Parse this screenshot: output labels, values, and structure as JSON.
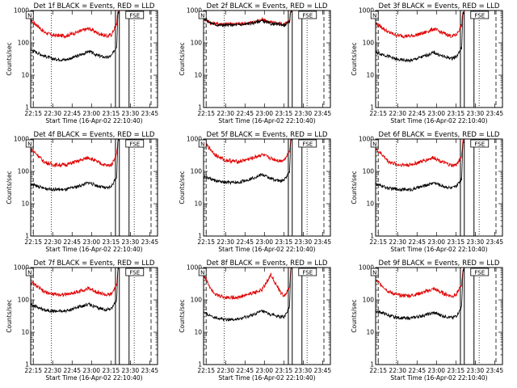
{
  "chart_data": {
    "type": "line",
    "grid": false,
    "legend": "none",
    "colors": {
      "events": "#000000",
      "lld": "#e00000",
      "axes": "#000000"
    },
    "yscale": "log",
    "ylim": [
      1,
      1000
    ],
    "ytick_labels": [
      "1",
      "10",
      "100",
      "1000"
    ],
    "xtick_labels": [
      "22:15",
      "22:30",
      "22:45",
      "23:00",
      "23:15",
      "23:30",
      "23:45"
    ],
    "xlim": [
      "22:13",
      "23:51"
    ],
    "xlabel": "Start Time (16-Apr-02 22:10:40)",
    "ylabel": "Counts/sec",
    "events_marker": "Events",
    "flags": {
      "left": "N",
      "right": "FSE"
    },
    "x_hours": [
      22.2167,
      22.3,
      22.3833,
      22.5,
      22.6667,
      22.8333,
      22.9667,
      23.0833,
      23.2,
      23.2583,
      23.325,
      23.34,
      23.4
    ],
    "panels": [
      {
        "title": "Det 1f BLACK = Events, RED = LLD",
        "lld": [
          500,
          350,
          220,
          170,
          165,
          220,
          280,
          200,
          160,
          180,
          400,
          1000,
          1000
        ],
        "events": [
          60,
          50,
          40,
          32,
          30,
          40,
          55,
          40,
          35,
          40,
          80,
          900,
          1000
        ]
      },
      {
        "title": "Det 2f BLACK = Events, RED = LLD",
        "lld": [
          600,
          420,
          390,
          380,
          390,
          420,
          520,
          420,
          400,
          380,
          500,
          1000,
          1000
        ],
        "events": [
          600,
          420,
          360,
          350,
          360,
          400,
          480,
          390,
          370,
          350,
          450,
          1000,
          1000
        ]
      },
      {
        "title": "Det 3f BLACK = Events, RED = LLD",
        "lld": [
          400,
          300,
          210,
          170,
          160,
          200,
          270,
          200,
          160,
          180,
          350,
          900,
          1000
        ],
        "events": [
          50,
          45,
          38,
          30,
          28,
          38,
          50,
          38,
          33,
          38,
          70,
          800,
          1000
        ]
      },
      {
        "title": "Det 4f BLACK = Events, RED = LLD",
        "lld": [
          500,
          330,
          200,
          160,
          160,
          210,
          270,
          190,
          150,
          160,
          350,
          1000,
          1000
        ],
        "events": [
          40,
          35,
          30,
          28,
          27,
          35,
          45,
          35,
          30,
          35,
          70,
          900,
          1000
        ]
      },
      {
        "title": "Det 5f BLACK = Events, RED = LLD",
        "lld": [
          800,
          500,
          300,
          220,
          200,
          250,
          330,
          250,
          210,
          230,
          450,
          1000,
          1000
        ],
        "events": [
          70,
          60,
          50,
          45,
          45,
          60,
          80,
          60,
          50,
          55,
          100,
          1000,
          1000
        ]
      },
      {
        "title": "Det 6f BLACK = Events, RED = LLD",
        "lld": [
          500,
          330,
          200,
          160,
          160,
          210,
          270,
          190,
          150,
          160,
          300,
          900,
          1000
        ],
        "events": [
          40,
          35,
          30,
          28,
          27,
          35,
          45,
          35,
          30,
          35,
          60,
          800,
          1000
        ]
      },
      {
        "title": "Det 7f BLACK = Events, RED = LLD",
        "lld": [
          350,
          260,
          180,
          150,
          145,
          180,
          230,
          170,
          140,
          150,
          300,
          1000,
          1000
        ],
        "events": [
          70,
          60,
          50,
          45,
          45,
          60,
          75,
          55,
          50,
          55,
          100,
          1000,
          1000
        ]
      },
      {
        "title": "Det 8f BLACK = Events, RED = LLD",
        "lld": [
          600,
          250,
          140,
          120,
          120,
          160,
          200,
          600,
          180,
          130,
          250,
          1000,
          1000
        ],
        "events": [
          40,
          33,
          28,
          25,
          25,
          33,
          45,
          35,
          30,
          30,
          60,
          1000,
          1000
        ]
      },
      {
        "title": "Det 9f BLACK = Events, RED = LLD",
        "lld": [
          400,
          280,
          180,
          140,
          135,
          170,
          220,
          160,
          130,
          150,
          300,
          900,
          1000
        ],
        "events": [
          45,
          40,
          33,
          28,
          27,
          33,
          40,
          32,
          28,
          32,
          60,
          800,
          1000
        ]
      }
    ],
    "vlines": {
      "dotted": [
        "22:29",
        "23:33"
      ],
      "dashed": [
        "22:15",
        "23:46"
      ],
      "solid": [
        "23:18.5",
        "23:21.5",
        "23:29"
      ]
    }
  }
}
